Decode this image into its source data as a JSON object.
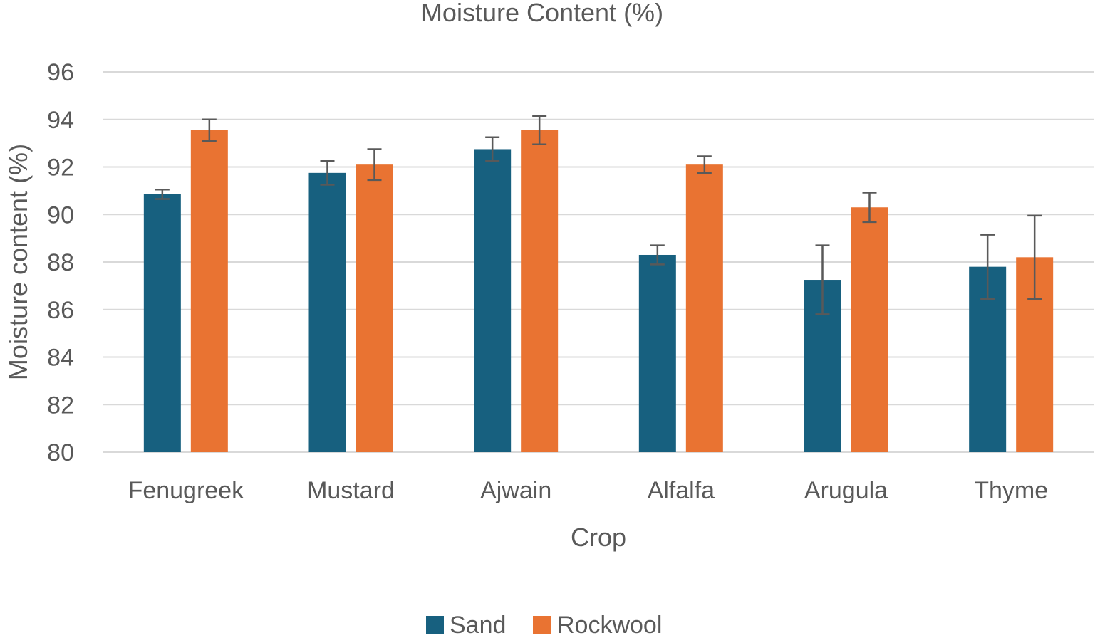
{
  "chart_data": {
    "type": "bar",
    "title": "Moisture Content (%)",
    "xlabel": "Crop",
    "ylabel": "Moisture content (%)",
    "ylim": [
      80,
      96
    ],
    "yticks": [
      80,
      82,
      84,
      86,
      88,
      90,
      92,
      94,
      96
    ],
    "grid": true,
    "legend_position": "bottom",
    "categories": [
      "Fenugreek",
      "Mustard",
      "Ajwain",
      "Alfalfa",
      "Arugula",
      "Thyme"
    ],
    "series": [
      {
        "name": "Sand",
        "color": "#17607f",
        "values": [
          90.85,
          91.75,
          92.75,
          88.3,
          87.25,
          87.8
        ],
        "errors": [
          0.2,
          0.5,
          0.5,
          0.4,
          1.45,
          1.35
        ]
      },
      {
        "name": "Rockwool",
        "color": "#e97332",
        "values": [
          93.55,
          92.1,
          93.55,
          92.1,
          90.3,
          88.2
        ],
        "errors": [
          0.45,
          0.65,
          0.6,
          0.35,
          0.62,
          1.75
        ]
      }
    ],
    "colors": {
      "gridline": "#d9d9d9",
      "error_bar": "#595959",
      "text": "#595959"
    }
  }
}
